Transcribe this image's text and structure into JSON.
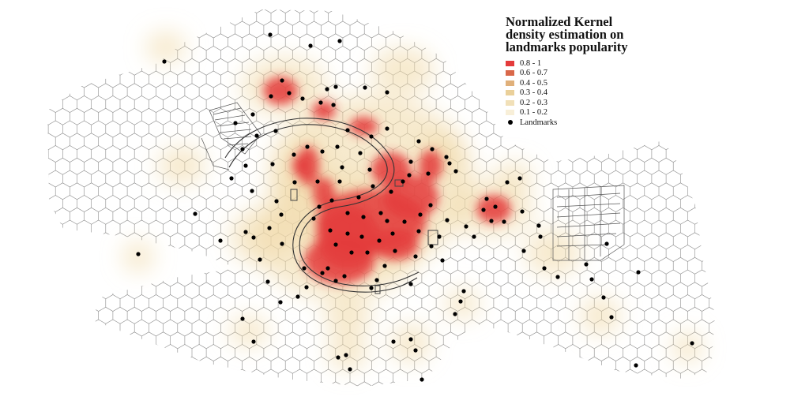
{
  "title_lines": [
    "Normalized Kernel",
    "density estimation on",
    "landmarks popularity"
  ],
  "legend": {
    "classes": [
      {
        "label": "0.8 - 1",
        "color": "#e43b3b"
      },
      {
        "label": "0.6 - 0.7",
        "color": "#d9684a"
      },
      {
        "label": "0.4 - 0.5",
        "color": "#e0b07a"
      },
      {
        "label": "0.3 - 0.4",
        "color": "#ead09a"
      },
      {
        "label": "0.2 - 0.3",
        "color": "#f1e0b8"
      },
      {
        "label": "0.1 - 0.2",
        "color": "#f8efd8"
      }
    ],
    "landmarks_label": "Landmarks"
  },
  "colors": {
    "high_density": "#e43b3b",
    "hex_stroke": "#8a8a8a",
    "landmark": "#000000"
  }
}
